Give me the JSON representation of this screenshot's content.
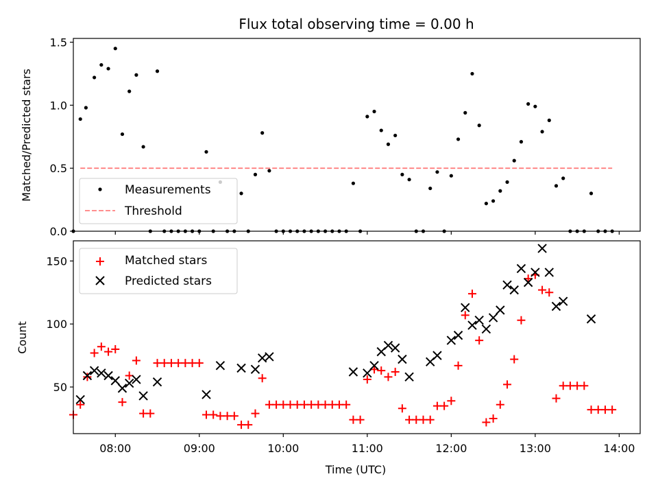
{
  "figure_title": "Flux total observing time = 0.00 h",
  "chart_data": [
    {
      "type": "scatter",
      "title": "Flux total observing time = 0.00 h",
      "xlabel": "",
      "ylabel": "Matched/Predicted stars",
      "xlim": [
        "07:30",
        "14:15"
      ],
      "ylim": [
        0,
        1.53
      ],
      "xticks": [
        "08:00",
        "09:00",
        "10:00",
        "11:00",
        "12:00",
        "13:00",
        "14:00"
      ],
      "yticks": [
        "0.0",
        "0.5",
        "1.0",
        "1.5"
      ],
      "legend_position": "lower-left",
      "series": [
        {
          "name": "Measurements",
          "marker": "dot",
          "color": "#000000",
          "points": [
            [
              "07:30",
              0
            ],
            [
              "07:35",
              0.89
            ],
            [
              "07:39",
              0.98
            ],
            [
              "07:45",
              1.22
            ],
            [
              "07:50",
              1.32
            ],
            [
              "07:55",
              1.29
            ],
            [
              "08:00",
              1.45
            ],
            [
              "08:05",
              0.77
            ],
            [
              "08:10",
              1.11
            ],
            [
              "08:15",
              1.24
            ],
            [
              "08:20",
              0.67
            ],
            [
              "08:25",
              0
            ],
            [
              "08:30",
              1.27
            ],
            [
              "08:35",
              0
            ],
            [
              "08:40",
              0
            ],
            [
              "08:45",
              0
            ],
            [
              "08:50",
              0
            ],
            [
              "08:55",
              0
            ],
            [
              "09:00",
              0
            ],
            [
              "09:05",
              0.63
            ],
            [
              "09:10",
              0
            ],
            [
              "09:15",
              0.39
            ],
            [
              "09:20",
              0
            ],
            [
              "09:25",
              0
            ],
            [
              "09:30",
              0.3
            ],
            [
              "09:35",
              0
            ],
            [
              "09:40",
              0.45
            ],
            [
              "09:45",
              0.78
            ],
            [
              "09:50",
              0.48
            ],
            [
              "09:55",
              0
            ],
            [
              "10:00",
              0
            ],
            [
              "10:05",
              0
            ],
            [
              "10:10",
              0
            ],
            [
              "10:15",
              0
            ],
            [
              "10:20",
              0
            ],
            [
              "10:25",
              0
            ],
            [
              "10:30",
              0
            ],
            [
              "10:35",
              0
            ],
            [
              "10:40",
              0
            ],
            [
              "10:45",
              0
            ],
            [
              "10:50",
              0.38
            ],
            [
              "10:55",
              0
            ],
            [
              "11:00",
              0.91
            ],
            [
              "11:05",
              0.95
            ],
            [
              "11:10",
              0.8
            ],
            [
              "11:15",
              0.69
            ],
            [
              "11:20",
              0.76
            ],
            [
              "11:25",
              0.45
            ],
            [
              "11:30",
              0.41
            ],
            [
              "11:35",
              0
            ],
            [
              "11:40",
              0
            ],
            [
              "11:45",
              0.34
            ],
            [
              "11:50",
              0.47
            ],
            [
              "11:55",
              0
            ],
            [
              "12:00",
              0.44
            ],
            [
              "12:05",
              0.73
            ],
            [
              "12:10",
              0.94
            ],
            [
              "12:15",
              1.25
            ],
            [
              "12:20",
              0.84
            ],
            [
              "12:25",
              0.22
            ],
            [
              "12:30",
              0.24
            ],
            [
              "12:35",
              0.32
            ],
            [
              "12:40",
              0.39
            ],
            [
              "12:45",
              0.56
            ],
            [
              "12:50",
              0.71
            ],
            [
              "12:55",
              1.01
            ],
            [
              "13:00",
              0.99
            ],
            [
              "13:05",
              0.79
            ],
            [
              "13:10",
              0.88
            ],
            [
              "13:15",
              0.36
            ],
            [
              "13:20",
              0.42
            ],
            [
              "13:25",
              0
            ],
            [
              "13:30",
              0
            ],
            [
              "13:35",
              0
            ],
            [
              "13:40",
              0.3
            ],
            [
              "13:45",
              0
            ],
            [
              "13:50",
              0
            ],
            [
              "13:55",
              0
            ]
          ]
        },
        {
          "name": "Threshold",
          "marker": "dashed-line",
          "color": "#ff7f7f",
          "points": [
            [
              "07:35",
              0.5
            ],
            [
              "13:55",
              0.5
            ]
          ]
        }
      ]
    },
    {
      "type": "scatter",
      "title": "",
      "xlabel": "Time (UTC)",
      "ylabel": "Count",
      "xlim": [
        "07:30",
        "14:15"
      ],
      "ylim": [
        13,
        166
      ],
      "xticks": [
        "08:00",
        "09:00",
        "10:00",
        "11:00",
        "12:00",
        "13:00",
        "14:00"
      ],
      "yticks": [
        "50",
        "100",
        "150"
      ],
      "legend_position": "upper-left",
      "series": [
        {
          "name": "Matched stars",
          "marker": "plus",
          "color": "#ff0000",
          "points": [
            [
              "07:30",
              28
            ],
            [
              "07:35",
              36
            ],
            [
              "07:40",
              58
            ],
            [
              "07:45",
              77
            ],
            [
              "07:50",
              82
            ],
            [
              "07:55",
              78
            ],
            [
              "08:00",
              80
            ],
            [
              "08:05",
              38
            ],
            [
              "08:10",
              59
            ],
            [
              "08:15",
              71
            ],
            [
              "08:20",
              29
            ],
            [
              "08:25",
              29
            ],
            [
              "08:30",
              69
            ],
            [
              "08:35",
              69
            ],
            [
              "08:40",
              69
            ],
            [
              "08:45",
              69
            ],
            [
              "08:50",
              69
            ],
            [
              "08:55",
              69
            ],
            [
              "09:00",
              69
            ],
            [
              "09:05",
              28
            ],
            [
              "09:10",
              28
            ],
            [
              "09:15",
              27
            ],
            [
              "09:20",
              27
            ],
            [
              "09:25",
              27
            ],
            [
              "09:30",
              20
            ],
            [
              "09:35",
              20
            ],
            [
              "09:40",
              29
            ],
            [
              "09:45",
              57
            ],
            [
              "09:50",
              36
            ],
            [
              "09:55",
              36
            ],
            [
              "10:00",
              36
            ],
            [
              "10:05",
              36
            ],
            [
              "10:10",
              36
            ],
            [
              "10:15",
              36
            ],
            [
              "10:20",
              36
            ],
            [
              "10:25",
              36
            ],
            [
              "10:30",
              36
            ],
            [
              "10:35",
              36
            ],
            [
              "10:40",
              36
            ],
            [
              "10:45",
              36
            ],
            [
              "10:50",
              24
            ],
            [
              "10:55",
              24
            ],
            [
              "11:00",
              56
            ],
            [
              "11:05",
              64
            ],
            [
              "11:10",
              63
            ],
            [
              "11:15",
              58
            ],
            [
              "11:20",
              62
            ],
            [
              "11:25",
              33
            ],
            [
              "11:30",
              24
            ],
            [
              "11:35",
              24
            ],
            [
              "11:40",
              24
            ],
            [
              "11:45",
              24
            ],
            [
              "11:50",
              35
            ],
            [
              "11:55",
              35
            ],
            [
              "12:00",
              39
            ],
            [
              "12:05",
              67
            ],
            [
              "12:10",
              107
            ],
            [
              "12:15",
              124
            ],
            [
              "12:20",
              87
            ],
            [
              "12:25",
              22
            ],
            [
              "12:30",
              25
            ],
            [
              "12:35",
              36
            ],
            [
              "12:40",
              52
            ],
            [
              "12:45",
              72
            ],
            [
              "12:50",
              103
            ],
            [
              "12:55",
              136
            ],
            [
              "13:00",
              139
            ],
            [
              "13:05",
              127
            ],
            [
              "13:10",
              125
            ],
            [
              "13:15",
              41
            ],
            [
              "13:20",
              51
            ],
            [
              "13:25",
              51
            ],
            [
              "13:30",
              51
            ],
            [
              "13:35",
              51
            ],
            [
              "13:40",
              32
            ],
            [
              "13:45",
              32
            ],
            [
              "13:50",
              32
            ],
            [
              "13:55",
              32
            ]
          ]
        },
        {
          "name": "Predicted stars",
          "marker": "x",
          "color": "#000000",
          "points": [
            [
              "07:35",
              40
            ],
            [
              "07:40",
              59
            ],
            [
              "07:45",
              63
            ],
            [
              "07:50",
              61
            ],
            [
              "07:55",
              59
            ],
            [
              "08:00",
              55
            ],
            [
              "08:05",
              49
            ],
            [
              "08:10",
              53
            ],
            [
              "08:15",
              56
            ],
            [
              "08:20",
              43
            ],
            [
              "08:30",
              54
            ],
            [
              "09:05",
              44
            ],
            [
              "09:15",
              67
            ],
            [
              "09:30",
              65
            ],
            [
              "09:40",
              64
            ],
            [
              "09:45",
              73
            ],
            [
              "09:50",
              74
            ],
            [
              "10:50",
              62
            ],
            [
              "11:00",
              61
            ],
            [
              "11:05",
              67
            ],
            [
              "11:10",
              78
            ],
            [
              "11:15",
              83
            ],
            [
              "11:20",
              81
            ],
            [
              "11:25",
              72
            ],
            [
              "11:30",
              58
            ],
            [
              "11:45",
              70
            ],
            [
              "11:50",
              75
            ],
            [
              "12:00",
              87
            ],
            [
              "12:05",
              91
            ],
            [
              "12:10",
              113
            ],
            [
              "12:15",
              99
            ],
            [
              "12:20",
              103
            ],
            [
              "12:25",
              96
            ],
            [
              "12:30",
              105
            ],
            [
              "12:35",
              111
            ],
            [
              "12:40",
              131
            ],
            [
              "12:45",
              127
            ],
            [
              "12:50",
              144
            ],
            [
              "12:55",
              133
            ],
            [
              "13:00",
              141
            ],
            [
              "13:05",
              160
            ],
            [
              "13:10",
              141
            ],
            [
              "13:15",
              114
            ],
            [
              "13:20",
              118
            ],
            [
              "13:40",
              104
            ]
          ]
        }
      ]
    }
  ]
}
